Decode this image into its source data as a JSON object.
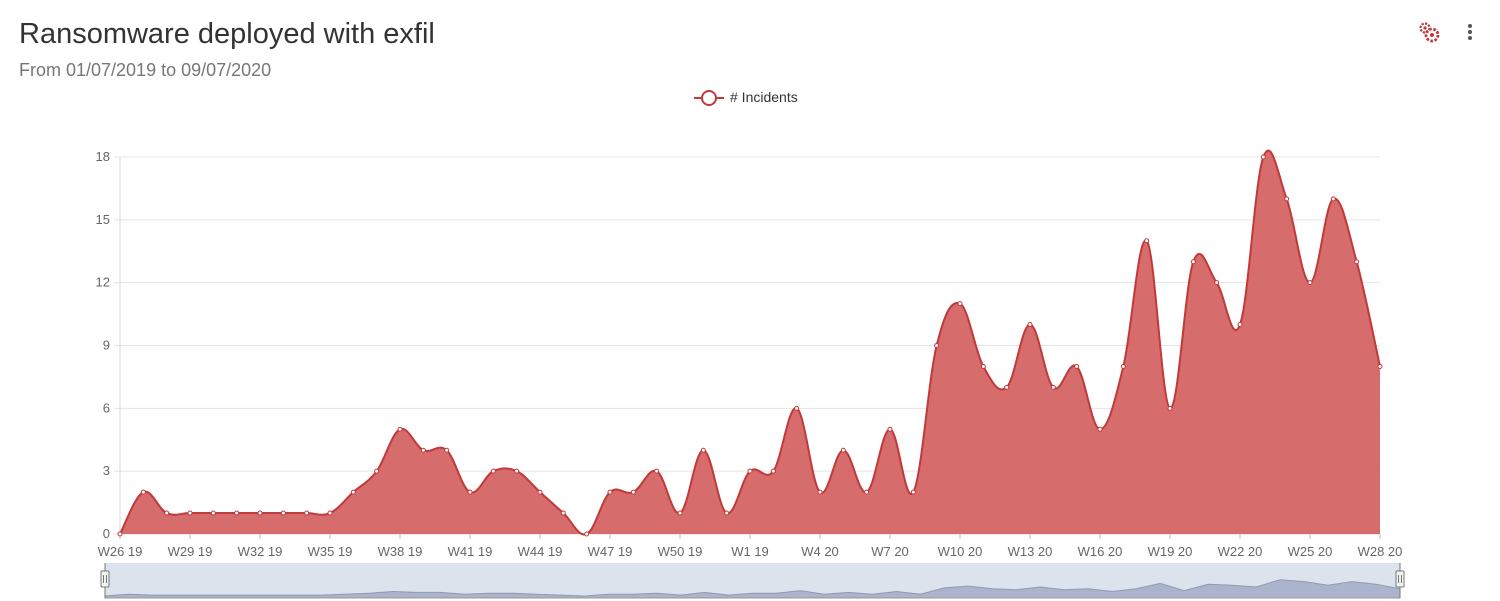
{
  "header": {
    "title": "Ransomware deployed with exfil",
    "subtitle": "From 01/07/2019 to 09/07/2020"
  },
  "toolbar": {
    "settings_icon": "gears-icon",
    "menu_icon": "kebab-menu-icon"
  },
  "colors": {
    "series": "#c0393b",
    "area": "#d46463",
    "navigator": "#aab4cc",
    "navigator_bg": "#dde3ed"
  },
  "chart_data": {
    "type": "area",
    "title": "Ransomware deployed with exfil",
    "subtitle": "From 01/07/2019 to 09/07/2020",
    "legend": {
      "position": "top-center",
      "entries": [
        "# Incidents"
      ]
    },
    "grid": true,
    "ylim": [
      0,
      18
    ],
    "yticks": [
      0,
      3,
      6,
      9,
      12,
      15,
      18
    ],
    "xticks": [
      "W26 19",
      "W29 19",
      "W32 19",
      "W35 19",
      "W38 19",
      "W41 19",
      "W44 19",
      "W47 19",
      "W50 19",
      "W1 19",
      "W4 20",
      "W7 20",
      "W10 20",
      "W13 20",
      "W16 20",
      "W19 20",
      "W22 20",
      "W25 20",
      "W28 20"
    ],
    "x": [
      "W26 19",
      "W27 19",
      "W28 19",
      "W29 19",
      "W30 19",
      "W31 19",
      "W32 19",
      "W33 19",
      "W34 19",
      "W35 19",
      "W36 19",
      "W37 19",
      "W38 19",
      "W39 19",
      "W40 19",
      "W41 19",
      "W42 19",
      "W43 19",
      "W44 19",
      "W45 19",
      "W46 19",
      "W47 19",
      "W48 19",
      "W49 19",
      "W50 19",
      "W51 19",
      "W52 19",
      "W1 19",
      "W2 20",
      "W3 20",
      "W4 20",
      "W5 20",
      "W6 20",
      "W7 20",
      "W8 20",
      "W9 20",
      "W10 20",
      "W11 20",
      "W12 20",
      "W13 20",
      "W14 20",
      "W15 20",
      "W16 20",
      "W17 20",
      "W18 20",
      "W19 20",
      "W20 20",
      "W21 20",
      "W22 20",
      "W23 20",
      "W24 20",
      "W25 20",
      "W26 20",
      "W27 20",
      "W28 20"
    ],
    "series": [
      {
        "name": "# Incidents",
        "values": [
          0,
          2,
          1,
          1,
          1,
          1,
          1,
          1,
          1,
          1,
          2,
          3,
          5,
          4,
          4,
          2,
          3,
          3,
          2,
          1,
          0,
          2,
          2,
          3,
          1,
          4,
          1,
          3,
          3,
          6,
          2,
          4,
          2,
          5,
          2,
          9,
          11,
          8,
          7,
          10,
          7,
          8,
          5,
          8,
          14,
          6,
          13,
          12,
          10,
          18,
          16,
          12,
          16,
          13,
          8
        ]
      }
    ]
  }
}
